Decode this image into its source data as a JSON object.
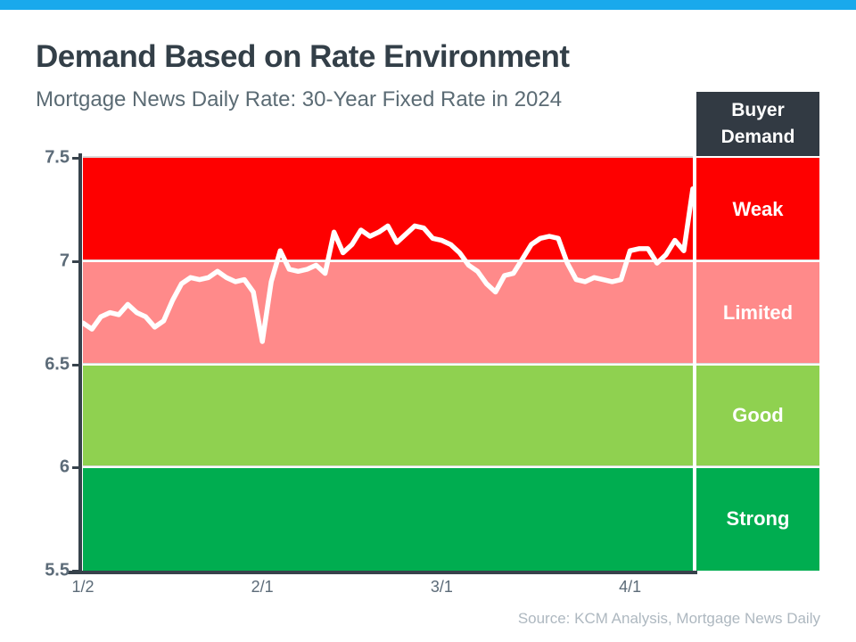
{
  "page": {
    "title": "Demand Based on Rate Environment",
    "subtitle": "Mortgage News Daily Rate: 30-Year Fixed Rate in 2024",
    "source": "Source: KCM Analysis, Mortgage News Daily"
  },
  "legend": {
    "header": "Buyer Demand"
  },
  "colors": {
    "topbar": "#19A9EC",
    "title_text": "#333F48",
    "subtitle_text": "#5B6B74",
    "axis_text": "#5C6B78",
    "axis_line": "#37424B",
    "gridline": "#D9D9D9",
    "legend_header_bg": "#323A43",
    "source_text": "#AEB8C0",
    "band_weak": "#FE0000",
    "band_limited": "#FF8A8A",
    "band_good": "#8FD150",
    "band_strong": "#00AD50",
    "rate_line": "#FFFFFF"
  },
  "chart_data": {
    "type": "line",
    "title": "Demand Based on Rate Environment",
    "subtitle": "Mortgage News Daily Rate: 30-Year Fixed Rate in 2024",
    "ylim": [
      5.5,
      7.5
    ],
    "grid": false,
    "legend_position": "right",
    "legend_header": "Buyer Demand",
    "y_ticks": [
      7.5,
      7,
      6.5,
      6,
      5.5
    ],
    "y_tick_labels": [
      "7.5",
      "7",
      "6.5",
      "6",
      "5.5"
    ],
    "x_ticks": [
      {
        "label": "1/2",
        "index": 0
      },
      {
        "label": "2/1",
        "index": 20
      },
      {
        "label": "3/1",
        "index": 40
      },
      {
        "label": "4/1",
        "index": 61
      }
    ],
    "bands": [
      {
        "label": "Weak",
        "from": 7.0,
        "to": 7.5,
        "color": "#FE0000"
      },
      {
        "label": "Limited",
        "from": 6.5,
        "to": 7.0,
        "color": "#FF8A8A"
      },
      {
        "label": "Good",
        "from": 6.0,
        "to": 6.5,
        "color": "#8FD150"
      },
      {
        "label": "Strong",
        "from": 5.5,
        "to": 6.0,
        "color": "#00AD50"
      }
    ],
    "series": [
      {
        "name": "30-Year Fixed Rate",
        "color": "#FFFFFF",
        "values": [
          6.7,
          6.67,
          6.73,
          6.75,
          6.74,
          6.79,
          6.75,
          6.73,
          6.68,
          6.71,
          6.81,
          6.89,
          6.92,
          6.91,
          6.92,
          6.95,
          6.92,
          6.9,
          6.91,
          6.85,
          6.61,
          6.9,
          7.05,
          6.96,
          6.95,
          6.96,
          6.98,
          6.94,
          7.14,
          7.04,
          7.08,
          7.15,
          7.12,
          7.14,
          7.17,
          7.09,
          7.13,
          7.17,
          7.16,
          7.11,
          7.1,
          7.08,
          7.04,
          6.98,
          6.95,
          6.89,
          6.85,
          6.93,
          6.94,
          7.01,
          7.08,
          7.11,
          7.12,
          7.11,
          6.99,
          6.91,
          6.9,
          6.92,
          6.91,
          6.9,
          6.91,
          7.05,
          7.06,
          7.06,
          6.99,
          7.03,
          7.1,
          7.05,
          7.35
        ]
      }
    ]
  }
}
